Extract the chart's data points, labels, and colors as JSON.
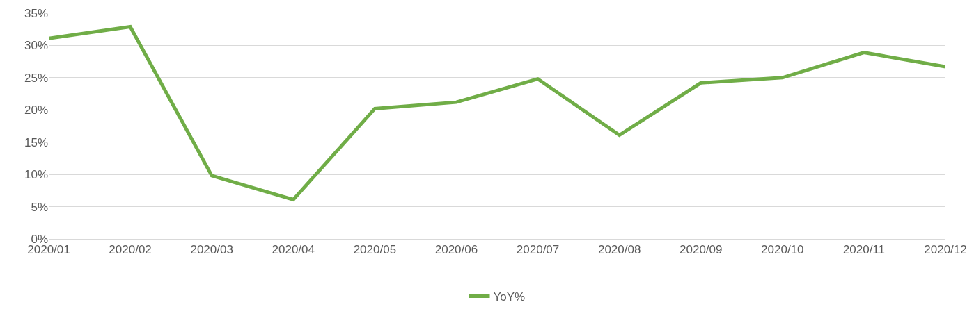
{
  "chart_data": {
    "type": "line",
    "categories": [
      "2020/01",
      "2020/02",
      "2020/03",
      "2020/04",
      "2020/05",
      "2020/06",
      "2020/07",
      "2020/08",
      "2020/09",
      "2020/10",
      "2020/11",
      "2020/12"
    ],
    "series": [
      {
        "name": "YoY%",
        "color": "#70ad47",
        "values": [
          31.1,
          32.9,
          9.8,
          6.1,
          20.2,
          21.2,
          24.8,
          16.1,
          24.2,
          25.0,
          28.9,
          26.7
        ]
      }
    ],
    "ylim": [
      0,
      35
    ],
    "yticks": [
      {
        "value": 0,
        "label": "0%"
      },
      {
        "value": 5,
        "label": "5%"
      },
      {
        "value": 10,
        "label": "10%"
      },
      {
        "value": 15,
        "label": "15%"
      },
      {
        "value": 20,
        "label": "20%"
      },
      {
        "value": 25,
        "label": "25%"
      },
      {
        "value": 30,
        "label": "30%"
      },
      {
        "value": 35,
        "label": "35%"
      }
    ],
    "grid": "y",
    "legend": "bottom",
    "marker": "none",
    "line_style": "solid"
  }
}
